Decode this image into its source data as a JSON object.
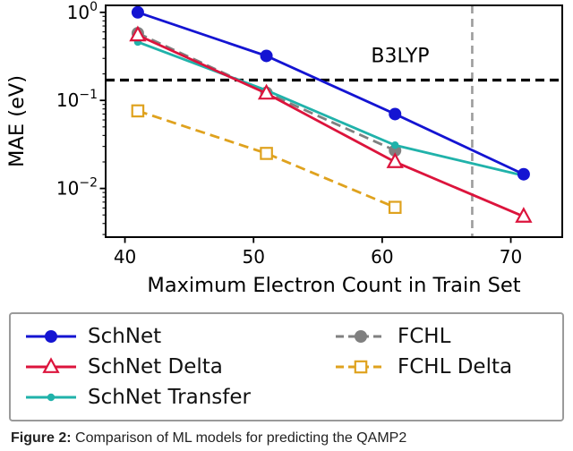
{
  "chart_data": {
    "type": "line",
    "title": "",
    "xlabel": "Maximum Electron Count in Train Set",
    "ylabel": "MAE (eV)",
    "xlim": [
      38.5,
      74.0
    ],
    "ylim": [
      0.0028,
      1.2
    ],
    "y_scale": "log",
    "grid": false,
    "legend_position": "below",
    "xticks": [
      40,
      50,
      60,
      70
    ],
    "yticks": [
      {
        "v": 1,
        "exp": "0"
      },
      {
        "v": 0.1,
        "exp": "−1"
      },
      {
        "v": 0.01,
        "exp": "−2"
      }
    ],
    "series": [
      {
        "name": "SchNet",
        "color": "#1414d2",
        "dash": "solid",
        "marker": "circle",
        "x": [
          41,
          51,
          61,
          71
        ],
        "y": [
          1.0,
          0.32,
          0.07,
          0.0145
        ]
      },
      {
        "name": "SchNet Delta",
        "color": "#dc143c",
        "dash": "solid",
        "marker": "triangle-open",
        "x": [
          41,
          51,
          61,
          71
        ],
        "y": [
          0.55,
          0.12,
          0.02,
          0.0048
        ]
      },
      {
        "name": "SchNet Transfer",
        "color": "#20b2aa",
        "dash": "solid",
        "marker": "dot",
        "x": [
          41,
          51,
          61,
          71
        ],
        "y": [
          0.46,
          0.13,
          0.031,
          0.014
        ]
      },
      {
        "name": "FCHL",
        "color": "#808080",
        "dash": "dashed",
        "marker": "circle",
        "x": [
          41,
          51,
          61
        ],
        "y": [
          0.58,
          0.122,
          0.027
        ]
      },
      {
        "name": "FCHL Delta",
        "color": "#dfa21e",
        "dash": "dashed",
        "marker": "square-open",
        "x": [
          41,
          51,
          61
        ],
        "y": [
          0.076,
          0.025,
          0.0061
        ]
      }
    ],
    "reference_lines": {
      "b3lyp": {
        "label": "B3LYP",
        "y": 0.17,
        "color": "#000000"
      },
      "vertical": {
        "x": 67,
        "color": "#9c9c9c"
      }
    }
  },
  "legend": {
    "columns": [
      [
        "SchNet",
        "SchNet Delta",
        "SchNet Transfer"
      ],
      [
        "FCHL",
        "FCHL Delta"
      ]
    ]
  },
  "caption": {
    "prefix": "Figure 2:",
    "text": "Comparison of ML models for predicting the QAMP2"
  }
}
